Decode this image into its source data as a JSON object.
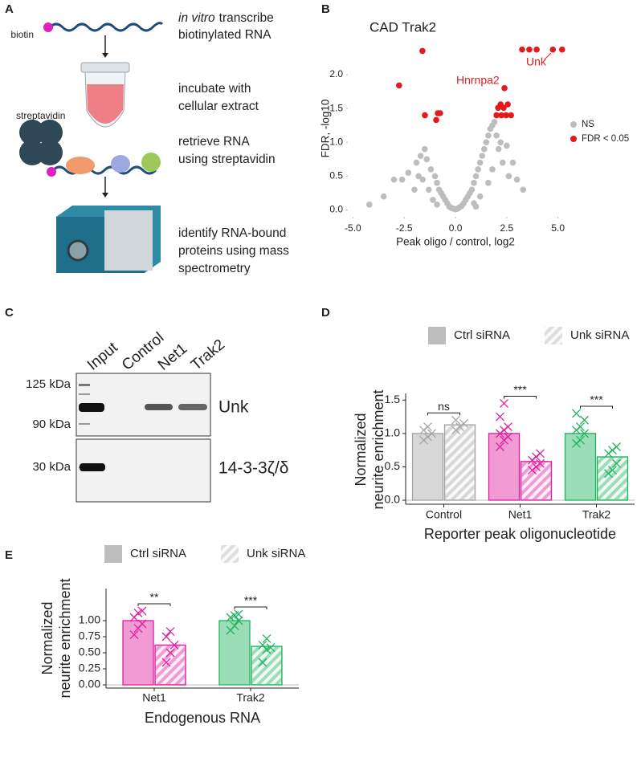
{
  "panel_labels": [
    "A",
    "B",
    "C",
    "D",
    "E"
  ],
  "panel_a": {
    "labels": [
      "biotin",
      "streptavidin"
    ],
    "steps": [
      {
        "italic": "in vitro",
        "lines": [
          "transcribe",
          "biotinylated RNA"
        ]
      },
      {
        "lines": [
          "incubate with",
          "cellular extract"
        ]
      },
      {
        "lines": [
          "retrieve RNA",
          "using streptavidin"
        ]
      },
      {
        "lines": [
          "identify RNA-bound",
          "proteins using mass",
          "spectrometry"
        ]
      }
    ]
  },
  "panel_c": {
    "lanes": [
      "Input",
      "Control",
      "Net1",
      "Trak2"
    ],
    "markers": [
      "125 kDa",
      "90 kDa",
      "30 kDa"
    ],
    "proteins": [
      "Unk",
      "14-3-3ζ/δ"
    ]
  },
  "chart_data": [
    {
      "type": "scatter",
      "title": "CAD Trak2",
      "xlabel": "Peak oligo / control, log2",
      "ylabel": "FDR, -log10",
      "xlim": [
        -5.25,
        5.6
      ],
      "ylim": [
        -0.1,
        2.45
      ],
      "xticks": [
        {
          "value": -5,
          "label": "-5.0"
        },
        {
          "value": -2.5,
          "label": "-2.5"
        },
        {
          "value": 0,
          "label": "0.0"
        },
        {
          "value": 2.5,
          "label": "2.5"
        },
        {
          "value": 5,
          "label": "5.0"
        }
      ],
      "yticks": [
        {
          "value": 0,
          "label": "0.0"
        },
        {
          "value": 0.5,
          "label": "0.5"
        },
        {
          "value": 1,
          "label": "1.0"
        },
        {
          "value": 1.5,
          "label": "1.5"
        },
        {
          "value": 2,
          "label": "2.0"
        }
      ],
      "annotations": [
        "Hnrnpa2",
        "Unk"
      ],
      "annotation_color": "#e31a1c",
      "series": [
        {
          "name": "NS",
          "color": "#bdbdbd",
          "x": [
            -4.2,
            -3.0,
            -2.6,
            -2.3,
            -1.9,
            -1.7,
            -1.5,
            -1.4,
            -1.2,
            -1.0,
            -0.9,
            -0.8,
            -0.7,
            -0.6,
            -0.5,
            -0.4,
            -0.3,
            -0.2,
            -0.1,
            0,
            0.1,
            0.2,
            0.3,
            0.4,
            0.5,
            0.6,
            0.7,
            0.8,
            0.9,
            1.0,
            1.1,
            1.2,
            1.3,
            1.4,
            1.5,
            1.6,
            1.7,
            1.8,
            1.9,
            2.0,
            2.1,
            2.3,
            2.6,
            3.0,
            1.6,
            1.8,
            -1.6,
            -2.0,
            1.2,
            -1.1,
            0.9,
            -0.9,
            2.5,
            2.2,
            -1.8,
            3.3,
            -3.5,
            2.8,
            1.0,
            -1.3
          ],
          "y": [
            0.08,
            0.45,
            0.45,
            0.55,
            0.7,
            0.8,
            0.9,
            0.75,
            0.6,
            0.5,
            0.4,
            0.3,
            0.25,
            0.2,
            0.15,
            0.1,
            0.05,
            0.03,
            0.02,
            0.01,
            0.02,
            0.04,
            0.06,
            0.1,
            0.15,
            0.2,
            0.25,
            0.3,
            0.4,
            0.5,
            0.6,
            0.7,
            0.8,
            0.9,
            1.0,
            1.1,
            1.2,
            1.25,
            1.3,
            1.1,
            0.9,
            0.7,
            0.5,
            0.45,
            0.4,
            0.6,
            0.45,
            0.3,
            0.2,
            0.15,
            0.1,
            0.08,
            0.95,
            1.0,
            0.5,
            0.3,
            0.2,
            0.7,
            0.05,
            0.3
          ]
        },
        {
          "name": "FDR < 0.05",
          "color": "#e31a1c",
          "x": [
            -2.75,
            -1.61,
            -1.49,
            -0.86,
            -0.75,
            -0.94,
            2.39,
            2.2,
            2.55,
            2.08,
            2.35,
            2.0,
            2.24,
            2.47,
            2.71,
            3.25,
            3.6,
            3.96,
            4.75,
            5.2
          ],
          "y": [
            1.84,
            2.35,
            1.4,
            1.43,
            1.43,
            1.33,
            1.8,
            1.56,
            1.56,
            1.51,
            1.51,
            1.4,
            1.4,
            1.4,
            1.4,
            2.37,
            2.37,
            2.37,
            2.37,
            2.37
          ]
        }
      ]
    },
    {
      "type": "bar",
      "xlabel": "Reporter peak oligonucleotide",
      "ylabel": [
        "Normalized",
        "neurite enrichment"
      ],
      "categories": [
        "Control",
        "Net1",
        "Trak2"
      ],
      "category_colors": [
        "#a6a6a6",
        "#e0209f",
        "#22b35e"
      ],
      "ylim": [
        -0.06,
        1.6
      ],
      "yticks": [
        {
          "value": 0,
          "label": "0.0"
        },
        {
          "value": 0.5,
          "label": "0.5"
        },
        {
          "value": 1,
          "label": "1.0"
        },
        {
          "value": 1.5,
          "label": "1.5"
        }
      ],
      "significance": [
        "ns",
        "***",
        "***"
      ],
      "series": [
        {
          "name": "Ctrl siRNA",
          "color": "#bdbdbd",
          "hatched": false,
          "values": [
            1.0,
            1.0,
            1.0
          ],
          "points": [
            [
              0.9,
              0.95,
              1.0,
              1.05,
              1.1
            ],
            [
              0.8,
              0.9,
              0.95,
              1.0,
              1.05,
              1.1,
              1.25,
              1.45
            ],
            [
              0.85,
              0.9,
              1.0,
              1.05,
              1.1,
              1.2,
              1.3
            ]
          ]
        },
        {
          "name": "Unk siRNA",
          "color": "#bdbdbd",
          "hatched": true,
          "values": [
            1.13,
            0.58,
            0.65
          ],
          "points": [
            [
              1.05,
              1.1,
              1.15,
              1.2
            ],
            [
              0.45,
              0.5,
              0.55,
              0.6,
              0.65,
              0.7
            ],
            [
              0.4,
              0.45,
              0.55,
              0.7,
              0.75,
              0.8
            ]
          ]
        }
      ]
    },
    {
      "type": "bar",
      "xlabel": "Endogenous RNA",
      "ylabel": [
        "Normalized",
        "neurite enrichment"
      ],
      "categories": [
        "Net1",
        "Trak2"
      ],
      "category_colors": [
        "#e0209f",
        "#22b35e"
      ],
      "ylim": [
        -0.05,
        1.5
      ],
      "yticks": [
        {
          "value": 0,
          "label": "0.00"
        },
        {
          "value": 0.25,
          "label": "0.25"
        },
        {
          "value": 0.5,
          "label": "0.50"
        },
        {
          "value": 0.75,
          "label": "0.75"
        },
        {
          "value": 1,
          "label": "1.00"
        }
      ],
      "significance": [
        "**",
        "***"
      ],
      "series": [
        {
          "name": "Ctrl siRNA",
          "color": "#bdbdbd",
          "hatched": false,
          "values": [
            1.0,
            1.0
          ],
          "points": [
            [
              0.78,
              0.88,
              0.95,
              1.05,
              1.12,
              1.15
            ],
            [
              0.85,
              0.92,
              1.0,
              1.05,
              1.08,
              1.1
            ]
          ]
        },
        {
          "name": "Unk siRNA",
          "color": "#bdbdbd",
          "hatched": true,
          "values": [
            0.62,
            0.6
          ],
          "points": [
            [
              0.35,
              0.5,
              0.62,
              0.75,
              0.83
            ],
            [
              0.35,
              0.55,
              0.58,
              0.62,
              0.72
            ]
          ]
        }
      ]
    }
  ]
}
